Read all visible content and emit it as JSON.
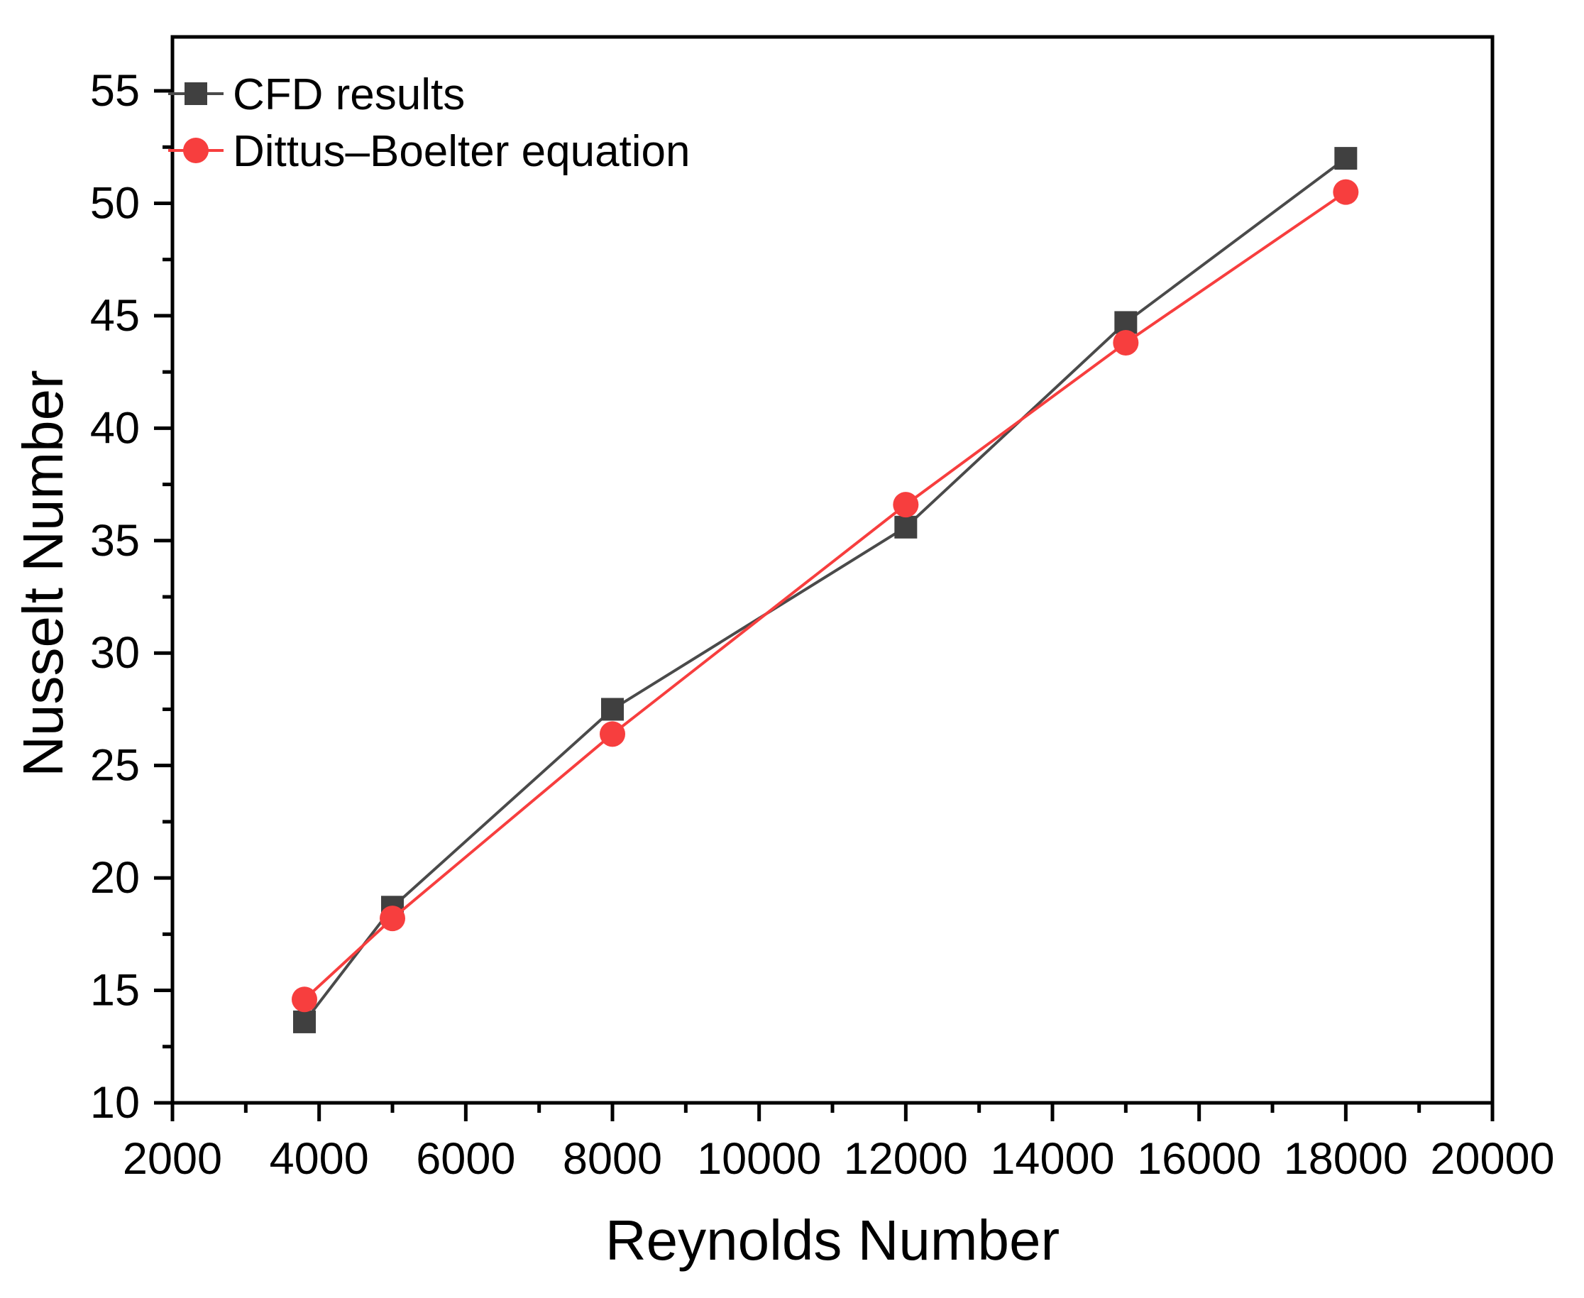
{
  "chart_data": {
    "type": "line",
    "title": "",
    "xlabel": "Reynolds Number",
    "ylabel": "Nusselt Number",
    "xlim": [
      2000,
      20000
    ],
    "ylim": [
      10,
      57.4
    ],
    "x_major_ticks": [
      2000,
      4000,
      6000,
      8000,
      10000,
      12000,
      14000,
      16000,
      18000,
      20000
    ],
    "x_minor_ticks": [
      3000,
      5000,
      7000,
      9000,
      11000,
      13000,
      15000,
      17000,
      19000
    ],
    "y_major_ticks": [
      10,
      15,
      20,
      25,
      30,
      35,
      40,
      45,
      50,
      55
    ],
    "y_minor_ticks": [
      12.5,
      17.5,
      22.5,
      27.5,
      32.5,
      37.5,
      42.5,
      47.5,
      52.5
    ],
    "grid": false,
    "legend_position": "top-left-inside",
    "colors": {
      "axis": "#000000",
      "text": "#000000"
    },
    "x": [
      3800,
      5000,
      8000,
      12000,
      15000,
      18000
    ],
    "series": [
      {
        "id": "cfd",
        "name": "CFD results",
        "marker": "square",
        "color": "#404040",
        "line_color": "#4a4a4a",
        "values": [
          13.6,
          18.7,
          27.5,
          35.6,
          44.7,
          52.0
        ]
      },
      {
        "id": "dittus-boelter",
        "name": "Dittus–Boelter equation",
        "marker": "circle",
        "color": "#f73e3e",
        "line_color": "#f73e3e",
        "values": [
          14.6,
          18.2,
          26.4,
          36.6,
          43.8,
          50.5
        ]
      }
    ]
  }
}
